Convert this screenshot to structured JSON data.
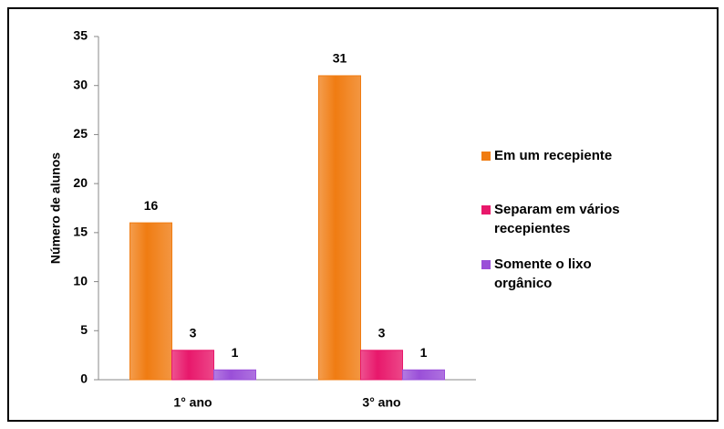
{
  "chart_data": {
    "type": "bar",
    "categories": [
      "1° ano",
      "3° ano"
    ],
    "series": [
      {
        "name": "Em um recepiente",
        "color": "#f07c12",
        "values": [
          16,
          31
        ]
      },
      {
        "name": "Separam em vários recepientes",
        "color": "#e8186b",
        "values": [
          3,
          3
        ]
      },
      {
        "name": "Somente o lixo orgânico",
        "color": "#9a4fd8",
        "values": [
          1,
          1
        ]
      }
    ],
    "ylabel": "Número de alunos",
    "ylim": [
      0,
      35
    ],
    "yticks": [
      0,
      5,
      10,
      15,
      20,
      25,
      30,
      35
    ],
    "legend": "right"
  }
}
